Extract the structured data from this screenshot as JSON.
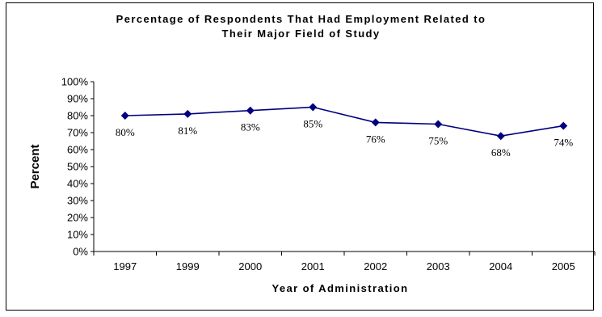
{
  "chart_data": {
    "type": "line",
    "title": "Percentage of Respondents That Had Employment Related to Their Major Field of Study",
    "title_lines": [
      "Percentage of Respondents That Had Employment Related to",
      "Their Major Field of Study"
    ],
    "xlabel": "Year of Administration",
    "ylabel": "Percent",
    "categories": [
      "1997",
      "1999",
      "2000",
      "2001",
      "2002",
      "2003",
      "2004",
      "2005"
    ],
    "series": [
      {
        "values": [
          80,
          81,
          83,
          85,
          76,
          75,
          68,
          74
        ],
        "data_labels": [
          "80%",
          "81%",
          "83%",
          "85%",
          "76%",
          "75%",
          "68%",
          "74%"
        ],
        "color": "#000080"
      }
    ],
    "ylim": [
      0,
      100
    ],
    "y_ticks": [
      "0%",
      "10%",
      "20%",
      "30%",
      "40%",
      "50%",
      "60%",
      "70%",
      "80%",
      "90%",
      "100%"
    ],
    "y_tick_values": [
      0,
      10,
      20,
      30,
      40,
      50,
      60,
      70,
      80,
      90,
      100
    ],
    "grid": false,
    "legend": "none",
    "marker": "diamond"
  }
}
